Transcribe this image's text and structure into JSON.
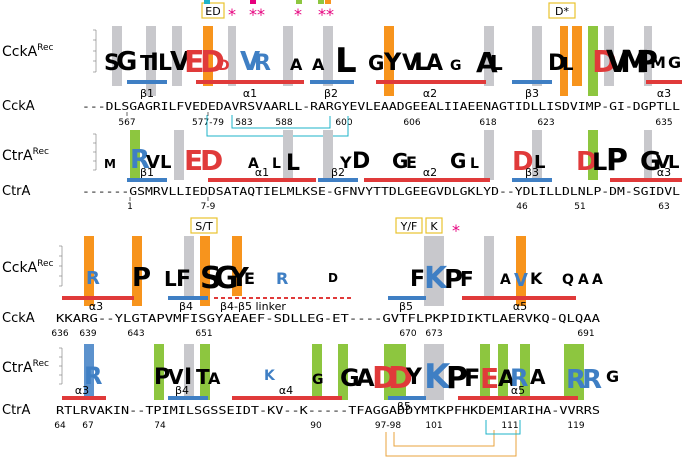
{
  "panel1": {
    "logo_label": {
      "main": "CckA",
      "sup": "Rec"
    },
    "seq_label": "CckA",
    "sequence": "---DLSGAGRILFVEDEDAVRSVAARLL-RARGYEVLEAADGEEALIIAEENAGTIDLLISDVIMP-GI-DGPTLL",
    "numbers": [
      "567",
      "577-79",
      "583",
      "588",
      "600",
      "606",
      "618",
      "623",
      "635"
    ],
    "ss": [
      "β1",
      "α1",
      "β2",
      "α2",
      "β3",
      "α3"
    ]
  },
  "panel2": {
    "logo_label": {
      "main": "CtrA",
      "sup": "Rec"
    },
    "seq_label": "CtrA",
    "sequence": "------GSMRVLLIEDDSATAQTIELMLKSE-GFNVYTTDLGEEGVDLGKLYD--YDLILLDLNLP-DM-SGIDVL",
    "numbers": [
      "1",
      "7-9",
      "46",
      "51",
      "63"
    ],
    "ss": [
      "β1",
      "α1",
      "β2",
      "α2",
      "β3",
      "α3"
    ]
  },
  "panel3": {
    "logo_label": {
      "main": "CckA",
      "sup": "Rec"
    },
    "seq_label": "CckA",
    "sequence": "KKARG--YLGTAPVMFISGYAEAEF-SDLLEG-ET----GVTFLPKPIDIKTLAERVKQ-QLQAA",
    "numbers": [
      "636",
      "639",
      "643",
      "651",
      "670",
      "673",
      "691"
    ],
    "ss": [
      "α3",
      "β4",
      "β5",
      "α5"
    ],
    "linker_label": "β4-β5 linker"
  },
  "panel4": {
    "logo_label": {
      "main": "CtrA",
      "sup": "Rec"
    },
    "seq_label": "CtrA",
    "sequence": "RTLRVAKIN--TPIMILSGSSEIDT-KV--K-----TFAGGADDYMTKPFHKDEMIARIHA-VVRRS",
    "numbers": [
      "64",
      "67",
      "74",
      "90",
      "97-98",
      "101",
      "111",
      "119"
    ],
    "ss": [
      "α3",
      "β4",
      "α4",
      "β5",
      "α5"
    ]
  },
  "boxes_top": [
    "ED",
    "D*"
  ],
  "boxes_bottom": [
    "S/T",
    "Y/F",
    "K"
  ],
  "star_glyph": "*",
  "star_double": "**",
  "colors": {
    "orange": "#f7941d",
    "gray": "#c8c8cc",
    "green": "#8dc63f",
    "blue": "#3f7fc4",
    "red": "#e03a3a",
    "magenta": "#e6007e",
    "cyan": "#1db3c8",
    "gold": "#e8a33d",
    "box": "#f0d44a"
  }
}
